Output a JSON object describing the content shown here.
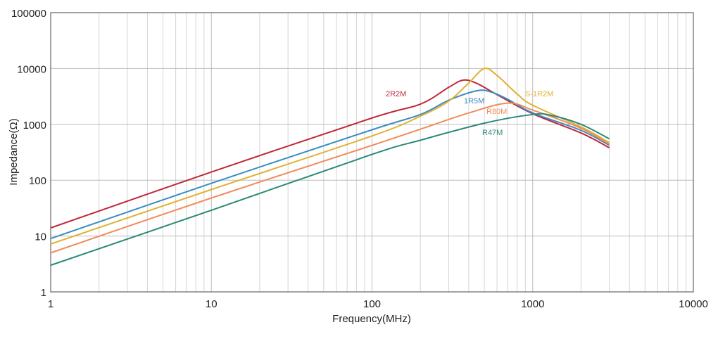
{
  "chart_data": {
    "type": "line",
    "xlabel": "Frequency(MHz)",
    "ylabel": "Impedance(Ω)",
    "xscale": "log",
    "yscale": "log",
    "xlim": [
      1,
      10000
    ],
    "ylim": [
      1,
      100000
    ],
    "grid": true,
    "xticks": [
      "1",
      "10",
      "100",
      "1000",
      "10000"
    ],
    "yticks": [
      "1",
      "10",
      "100",
      "1000",
      "10000",
      "100000"
    ],
    "series": [
      {
        "name": "2R2M",
        "color": "#c0283a",
        "points": [
          [
            1,
            14
          ],
          [
            10,
            140
          ],
          [
            100,
            1300
          ],
          [
            200,
            2300
          ],
          [
            300,
            4600
          ],
          [
            370,
            6200
          ],
          [
            450,
            5400
          ],
          [
            600,
            3400
          ],
          [
            1000,
            1550
          ],
          [
            2000,
            700
          ],
          [
            3000,
            380
          ]
        ]
      },
      {
        "name": "1R5M",
        "color": "#3a8cc0",
        "points": [
          [
            1,
            9
          ],
          [
            10,
            88
          ],
          [
            100,
            800
          ],
          [
            200,
            1500
          ],
          [
            300,
            2700
          ],
          [
            450,
            4000
          ],
          [
            550,
            3800
          ],
          [
            700,
            2800
          ],
          [
            1000,
            1600
          ],
          [
            2000,
            780
          ],
          [
            3000,
            420
          ]
        ]
      },
      {
        "name": "S-1R2M",
        "color": "#e0b030",
        "points": [
          [
            1,
            7.2
          ],
          [
            10,
            68
          ],
          [
            100,
            620
          ],
          [
            200,
            1400
          ],
          [
            300,
            2600
          ],
          [
            400,
            5500
          ],
          [
            500,
            10000
          ],
          [
            600,
            7500
          ],
          [
            800,
            3500
          ],
          [
            1000,
            2200
          ],
          [
            2000,
            900
          ],
          [
            3000,
            470
          ]
        ]
      },
      {
        "name": "R80M",
        "color": "#f08c5a",
        "points": [
          [
            1,
            5
          ],
          [
            10,
            48
          ],
          [
            100,
            420
          ],
          [
            200,
            820
          ],
          [
            400,
            1600
          ],
          [
            700,
            2400
          ],
          [
            1000,
            1800
          ],
          [
            2000,
            850
          ],
          [
            3000,
            440
          ]
        ]
      },
      {
        "name": "R47M",
        "color": "#2a8a78",
        "points": [
          [
            1,
            3
          ],
          [
            10,
            29
          ],
          [
            100,
            290
          ],
          [
            200,
            520
          ],
          [
            500,
            1050
          ],
          [
            1000,
            1500
          ],
          [
            1300,
            1450
          ],
          [
            2000,
            1000
          ],
          [
            3000,
            550
          ]
        ]
      }
    ]
  }
}
